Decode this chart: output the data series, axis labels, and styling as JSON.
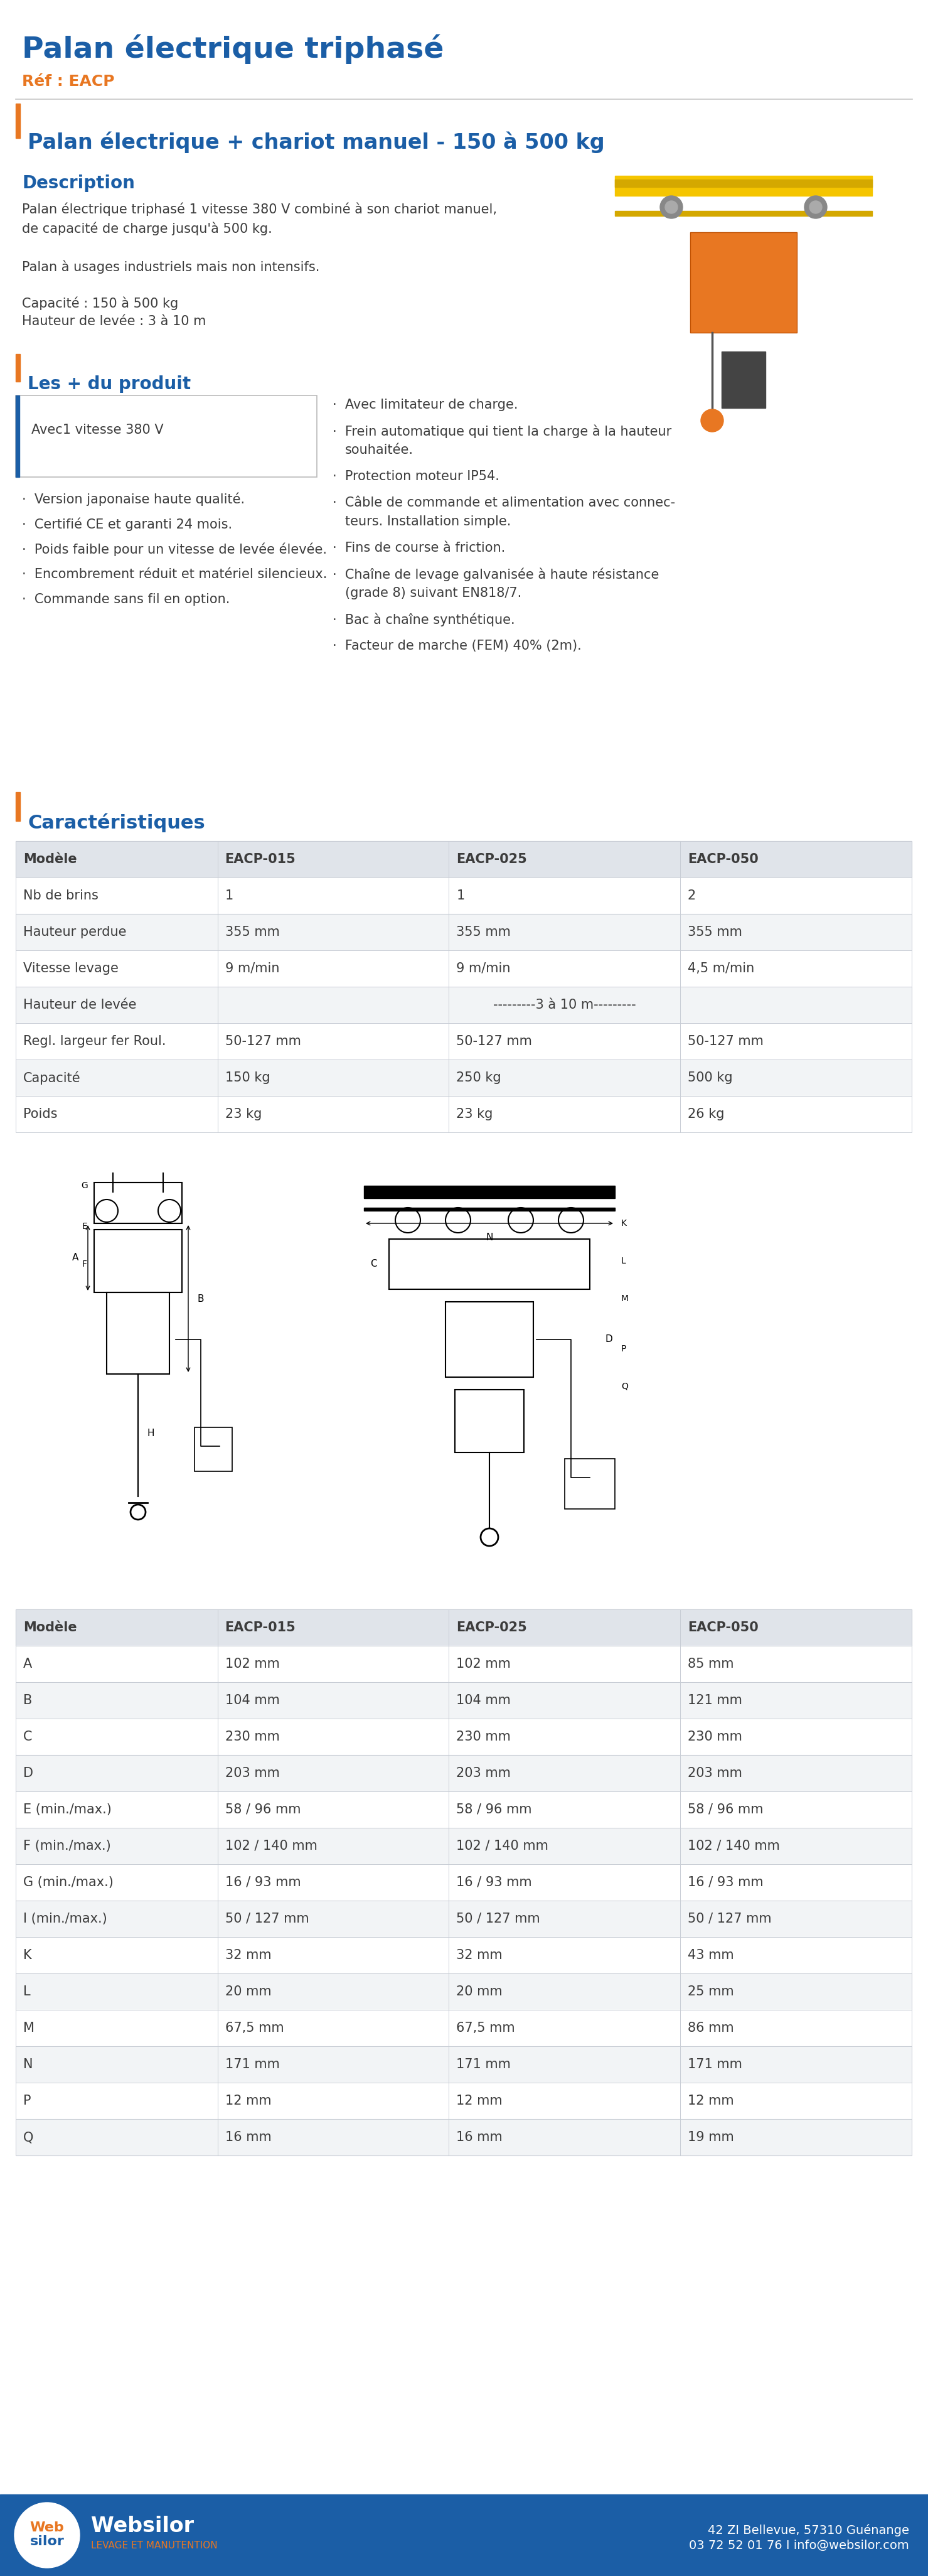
{
  "title": "Palan électrique triphasé",
  "ref": "Réf : EACP",
  "section1_title": "Palan électrique + chariot manuel - 150 à 500 kg",
  "section1_bar_color": "#E87722",
  "description_title": "Description",
  "description_text1": "Palan électrique triphasé 1 vitesse 380 V combiné à son chariot manuel,\nde capacité de charge jusqu'à 500 kg.",
  "description_text2": "Palan à usages industriels mais non intensifs.",
  "description_text3": "Capacité : 150 à 500 kg\nHauteur de levée : 3 à 10 m",
  "section2_title": "Les + du produit",
  "box_text": "Avec1 vitesse 380 V",
  "left_bullets": [
    "Version japonaise haute qualité.",
    "Certifié CE et garanti 24 mois.",
    "Poids faible pour un vitesse de levée élevée.",
    "Encombrement réduit et matériel silencieux.",
    "Commande sans fil en option."
  ],
  "right_bullets": [
    "Avec limitateur de charge.",
    "Frein automatique qui tient la charge à la hauteur\nsouhaitée.",
    "Protection moteur IP54.",
    "Câble de commande et alimentation avec connec-\nteurs. Installation simple.",
    "Fins de course à friction.",
    "Chaîne de levage galvanisée à haute résistance\n(grade 8) suivant EN818/7.",
    "Bac à chaîne synthétique.",
    "Facteur de marche (FEM) 40% (2m)."
  ],
  "section3_title": "Caractéristiques",
  "table1_headers": [
    "Modèle",
    "EACP-015",
    "EACP-025",
    "EACP-050"
  ],
  "table1_rows": [
    [
      "Nb de brins",
      "1",
      "1",
      "2"
    ],
    [
      "Hauteur perdue",
      "355 mm",
      "355 mm",
      "355 mm"
    ],
    [
      "Vitesse levage",
      "9 m/min",
      "9 m/min",
      "4,5 m/min"
    ],
    [
      "Hauteur de levée",
      "SPAN:---------3 à 10 m---------",
      "",
      ""
    ],
    [
      "Regl. largeur fer Roul.",
      "50-127 mm",
      "50-127 mm",
      "50-127 mm"
    ],
    [
      "Capacité",
      "150 kg",
      "250 kg",
      "500 kg"
    ],
    [
      "Poids",
      "23 kg",
      "23 kg",
      "26 kg"
    ]
  ],
  "table2_headers": [
    "Modèle",
    "EACP-015",
    "EACP-025",
    "EACP-050"
  ],
  "table2_rows": [
    [
      "A",
      "102 mm",
      "102 mm",
      "85 mm"
    ],
    [
      "B",
      "104 mm",
      "104 mm",
      "121 mm"
    ],
    [
      "C",
      "230 mm",
      "230 mm",
      "230 mm"
    ],
    [
      "D",
      "203 mm",
      "203 mm",
      "203 mm"
    ],
    [
      "E (min./max.)",
      "58 / 96 mm",
      "58 / 96 mm",
      "58 / 96 mm"
    ],
    [
      "F (min./max.)",
      "102 / 140 mm",
      "102 / 140 mm",
      "102 / 140 mm"
    ],
    [
      "G (min./max.)",
      "16 / 93 mm",
      "16 / 93 mm",
      "16 / 93 mm"
    ],
    [
      "I (min./max.)",
      "50 / 127 mm",
      "50 / 127 mm",
      "50 / 127 mm"
    ],
    [
      "K",
      "32 mm",
      "32 mm",
      "43 mm"
    ],
    [
      "L",
      "20 mm",
      "20 mm",
      "25 mm"
    ],
    [
      "M",
      "67,5 mm",
      "67,5 mm",
      "86 mm"
    ],
    [
      "N",
      "171 mm",
      "171 mm",
      "171 mm"
    ],
    [
      "P",
      "12 mm",
      "12 mm",
      "12 mm"
    ],
    [
      "Q",
      "16 mm",
      "16 mm",
      "19 mm"
    ]
  ],
  "footer_address": "42 ZI Bellevue, 57310 Guénange\n03 72 52 01 76 I info@websilor.com",
  "title_color": "#1B5EA6",
  "ref_color": "#E87722",
  "section_title_color": "#1B5EA6",
  "description_title_color": "#1B5EA6",
  "body_text_color": "#3C3C3C",
  "table_header_bg": "#E0E4EA",
  "table_row_even_bg": "#FFFFFF",
  "table_row_odd_bg": "#F2F4F6",
  "table_border_color": "#C8CDD5",
  "background_color": "#FFFFFF",
  "header_separator_color": "#C8C8C8",
  "footer_bg_color": "#1B5EA6",
  "footer_orange_color": "#E87722",
  "orange_bar_color": "#E87722",
  "box_border_color": "#BBBBBB",
  "box_left_bar_color": "#1B5EA6"
}
